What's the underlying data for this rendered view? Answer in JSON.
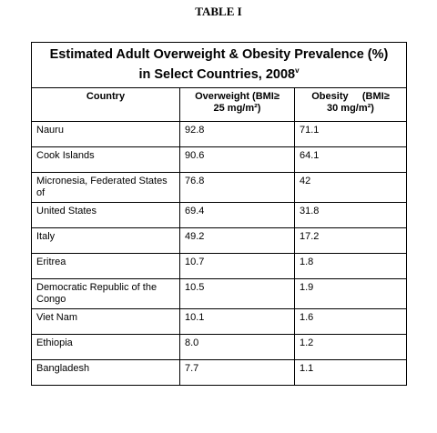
{
  "caption": "TABLE I",
  "table": {
    "title": [
      "Estimated Adult Overweight & Obesity Prevalence (%)",
      "in Select Countries, 2008"
    ],
    "title_superscript": "v",
    "headers": [
      [
        "Country"
      ],
      [
        "Overweight (BMI≥",
        "25 mg/m²)"
      ],
      [
        "Obesity     (BMI≥",
        "30 mg/m²)"
      ]
    ],
    "rows": [
      [
        "Nauru",
        "92.8",
        "71.1"
      ],
      [
        "Cook Islands",
        "90.6",
        "64.1"
      ],
      [
        "Micronesia, Federated States of",
        "76.8",
        "42"
      ],
      [
        "United States",
        "69.4",
        "31.8"
      ],
      [
        "Italy",
        "49.2",
        "17.2"
      ],
      [
        "Eritrea",
        "10.7",
        "1.8"
      ],
      [
        "Democratic Republic of the Congo",
        "10.5",
        "1.9"
      ],
      [
        "Viet Nam",
        "10.1",
        "1.6"
      ],
      [
        "Ethiopia",
        "8.0",
        "1.2"
      ],
      [
        "Bangladesh",
        "7.7",
        "1.1"
      ]
    ]
  }
}
